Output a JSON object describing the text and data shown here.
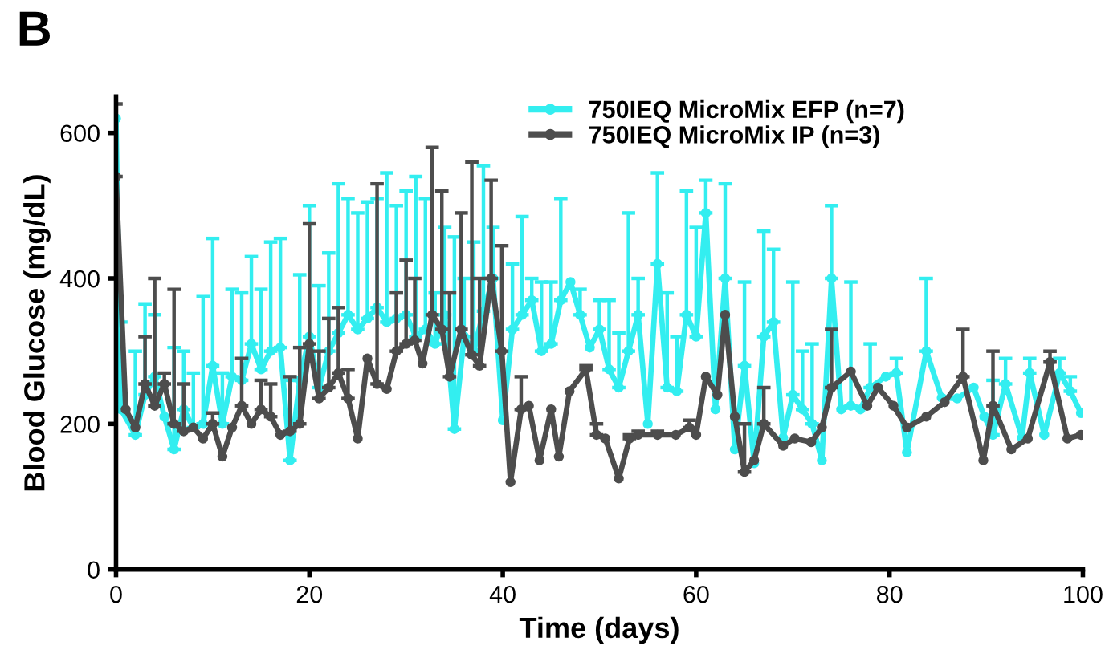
{
  "chart_data": {
    "type": "line",
    "title": "B",
    "xlabel": "Time (days)",
    "ylabel": "Blood Glucose (mg/dL)",
    "xlim": [
      0,
      100
    ],
    "xticks": [
      0,
      20,
      40,
      60,
      80,
      100
    ],
    "ylim": [
      0,
      650
    ],
    "yticks": [
      0,
      200,
      400,
      600
    ],
    "grid": false,
    "legend": "top right",
    "marker": "circle",
    "line_style": "solid",
    "series": [
      {
        "name": "750IEQ MicroMix EFP (n=7)",
        "color": "#33eef0",
        "x": [
          0,
          0.5,
          2,
          3,
          4,
          5,
          6,
          7,
          8,
          9,
          10,
          11,
          12,
          13,
          14,
          15,
          16,
          17,
          18,
          19,
          20,
          21,
          22,
          23,
          24,
          25,
          26,
          27,
          28,
          29,
          30,
          31,
          32,
          33,
          34,
          35,
          36,
          37,
          38,
          39,
          40,
          41,
          42,
          43,
          44,
          45,
          46,
          47,
          48,
          49,
          50,
          51,
          52,
          53,
          54,
          55,
          56,
          57,
          58,
          59,
          60,
          61,
          62,
          63,
          64,
          65,
          66,
          67,
          68,
          69,
          70,
          71,
          72,
          73,
          74,
          75,
          76,
          77,
          78,
          79.6,
          80.7,
          81.8,
          83.8,
          85.4,
          87,
          88.7,
          89.8,
          90.7,
          92,
          93.7,
          94.5,
          96,
          97.6,
          98.7,
          99.8
        ],
        "values": [
          620,
          220,
          185,
          240,
          265,
          210,
          165,
          220,
          195,
          200,
          280,
          200,
          265,
          260,
          310,
          275,
          300,
          305,
          150,
          260,
          320,
          250,
          300,
          325,
          350,
          330,
          345,
          360,
          340,
          345,
          350,
          320,
          330,
          310,
          350,
          193,
          320,
          300,
          355,
          400,
          205,
          330,
          350,
          370,
          300,
          310,
          370,
          395,
          350,
          305,
          330,
          275,
          250,
          300,
          350,
          200,
          420,
          250,
          245,
          350,
          320,
          490,
          220,
          400,
          165,
          280,
          146,
          320,
          340,
          181,
          240,
          220,
          200,
          150,
          400,
          220,
          225,
          220,
          250,
          265,
          270,
          161,
          300,
          236,
          235,
          250,
          210,
          185,
          255,
          181,
          270,
          185,
          270,
          245,
          215
        ],
        "errors": [
          null,
          [
            220,
            340
          ],
          [
            185,
            300
          ],
          [
            240,
            365
          ],
          [
            265,
            350
          ],
          null,
          [
            165,
            305
          ],
          [
            220,
            300
          ],
          [
            195,
            270
          ],
          [
            200,
            375
          ],
          [
            280,
            455
          ],
          [
            200,
            270
          ],
          [
            265,
            385
          ],
          [
            260,
            380
          ],
          [
            310,
            430
          ],
          [
            275,
            385
          ],
          [
            300,
            450
          ],
          [
            305,
            455
          ],
          [
            150,
            260
          ],
          [
            260,
            405
          ],
          [
            320,
            500
          ],
          [
            250,
            390
          ],
          [
            300,
            435
          ],
          [
            325,
            530
          ],
          [
            350,
            510
          ],
          [
            330,
            490
          ],
          [
            345,
            505
          ],
          [
            360,
            510
          ],
          [
            340,
            545
          ],
          [
            345,
            500
          ],
          [
            350,
            520
          ],
          [
            320,
            540
          ],
          [
            330,
            510
          ],
          [
            310,
            380
          ],
          [
            350,
            470
          ],
          [
            193,
            457
          ],
          [
            320,
            400
          ],
          [
            300,
            450
          ],
          [
            355,
            555
          ],
          [
            400,
            470
          ],
          null,
          [
            330,
            420
          ],
          [
            350,
            485
          ],
          [
            370,
            400
          ],
          [
            300,
            395
          ],
          [
            310,
            395
          ],
          [
            370,
            510
          ],
          null,
          [
            350,
            385
          ],
          null,
          [
            330,
            370
          ],
          [
            275,
            370
          ],
          [
            250,
            325
          ],
          [
            300,
            490
          ],
          [
            350,
            400
          ],
          null,
          [
            420,
            545
          ],
          [
            250,
            380
          ],
          [
            245,
            320
          ],
          [
            350,
            520
          ],
          [
            320,
            470
          ],
          [
            490,
            535
          ],
          null,
          [
            400,
            530
          ],
          null,
          [
            280,
            395
          ],
          null,
          [
            320,
            465
          ],
          [
            340,
            440
          ],
          null,
          [
            240,
            395
          ],
          [
            220,
            300
          ],
          [
            200,
            310
          ],
          null,
          [
            400,
            500
          ],
          null,
          [
            225,
            395
          ],
          null,
          [
            250,
            310
          ],
          null,
          [
            270,
            290
          ],
          null,
          [
            300,
            400
          ],
          null,
          null,
          null,
          null,
          [
            185,
            260
          ],
          [
            255,
            290
          ],
          null,
          [
            270,
            290
          ],
          null,
          [
            270,
            290
          ],
          [
            245,
            265
          ],
          null
        ]
      },
      {
        "name": "750IEQ MicroMix IP (n=3)",
        "color": "#4d4d4d",
        "x": [
          0,
          1,
          2,
          3,
          4,
          5,
          6,
          7,
          8,
          9,
          10,
          11,
          12,
          13,
          14,
          15,
          16,
          17,
          18,
          19,
          20,
          21,
          22,
          23,
          24,
          25,
          26,
          27,
          28,
          29,
          30,
          30.9,
          31.7,
          32.7,
          33.7,
          34.5,
          35.7,
          36.8,
          37.6,
          38.8,
          39.9,
          40.8,
          41.9,
          42.7,
          43.8,
          45,
          45.8,
          46.9,
          48.6,
          49.7,
          50.6,
          52,
          53.1,
          54,
          56,
          57.9,
          59.3,
          60,
          61,
          62.2,
          63,
          64,
          65,
          66,
          67,
          69,
          70.2,
          71.9,
          73,
          74,
          76,
          77.7,
          78.8,
          80.4,
          81.8,
          83.8,
          85.7,
          87.6,
          89.7,
          90.7,
          92.6,
          94.3,
          96.6,
          98.4,
          99.8
        ],
        "values": [
          540,
          220,
          195,
          255,
          225,
          255,
          200,
          190,
          195,
          180,
          200,
          155,
          195,
          225,
          200,
          220,
          210,
          185,
          190,
          200,
          310,
          235,
          250,
          270,
          235,
          180,
          290,
          255,
          248,
          300,
          310,
          315,
          283,
          350,
          330,
          265,
          330,
          295,
          280,
          400,
          300,
          120,
          220,
          225,
          150,
          220,
          155,
          245,
          275,
          185,
          180,
          125,
          180,
          185,
          185,
          185,
          195,
          185,
          265,
          240,
          350,
          210,
          134,
          150,
          200,
          170,
          180,
          175,
          195,
          250,
          272,
          225,
          250,
          225,
          195,
          210,
          230,
          265,
          150,
          225,
          165,
          180,
          285,
          180,
          185
        ],
        "errors": [
          [
            540,
            640
          ],
          null,
          null,
          [
            255,
            320
          ],
          [
            225,
            400
          ],
          [
            255,
            270
          ],
          [
            200,
            385
          ],
          [
            190,
            255
          ],
          null,
          null,
          [
            200,
            215
          ],
          null,
          null,
          [
            225,
            290
          ],
          null,
          [
            220,
            260
          ],
          [
            210,
            255
          ],
          null,
          [
            190,
            265
          ],
          [
            200,
            305
          ],
          [
            310,
            475
          ],
          [
            235,
            300
          ],
          [
            250,
            345
          ],
          [
            270,
            360
          ],
          [
            235,
            275
          ],
          null,
          null,
          [
            255,
            530
          ],
          null,
          [
            300,
            380
          ],
          [
            310,
            425
          ],
          [
            315,
            400
          ],
          null,
          [
            350,
            580
          ],
          [
            330,
            520
          ],
          [
            265,
            380
          ],
          [
            330,
            490
          ],
          [
            295,
            560
          ],
          [
            280,
            400
          ],
          [
            400,
            535
          ],
          [
            300,
            445
          ],
          null,
          [
            220,
            265
          ],
          null,
          null,
          null,
          null,
          null,
          [
            275,
            280
          ],
          [
            185,
            200
          ],
          null,
          null,
          [
            180,
            185
          ],
          [
            185,
            190
          ],
          [
            185,
            190
          ],
          null,
          [
            195,
            205
          ],
          null,
          null,
          null,
          null,
          null,
          [
            134,
            200
          ],
          null,
          [
            200,
            250
          ],
          null,
          null,
          null,
          null,
          [
            250,
            330
          ],
          null,
          null,
          null,
          null,
          null,
          null,
          null,
          [
            265,
            330
          ],
          null,
          [
            225,
            300
          ],
          null,
          null,
          [
            285,
            300
          ],
          null,
          null
        ]
      }
    ]
  }
}
